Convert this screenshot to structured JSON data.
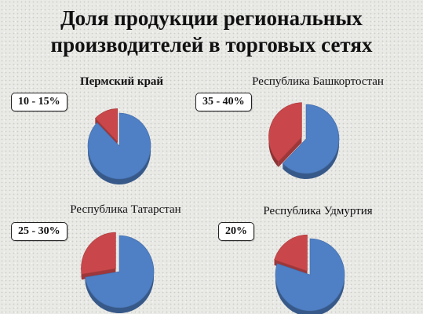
{
  "title_line1": "Доля продукции региональных",
  "title_line2": "производителей в торговых сетях",
  "colors": {
    "regional": "#c9474a",
    "other": "#4f7fc4"
  },
  "chart_data": [
    {
      "type": "pie",
      "title": "Пермский край",
      "range_label": "10 - 15%",
      "values": [
        12.5,
        87.5
      ],
      "colors": [
        "#c9474a",
        "#4f7fc4"
      ],
      "exploded": [
        true,
        false
      ]
    },
    {
      "type": "pie",
      "title": "Республика Башкортостан",
      "range_label": "35 - 40%",
      "values": [
        37.5,
        62.5
      ],
      "colors": [
        "#c9474a",
        "#4f7fc4"
      ],
      "exploded": [
        true,
        false
      ]
    },
    {
      "type": "pie",
      "title": "Республика Татарстан",
      "range_label": "25 - 30%",
      "values": [
        27.5,
        72.5
      ],
      "colors": [
        "#c9474a",
        "#4f7fc4"
      ],
      "exploded": [
        true,
        false
      ]
    },
    {
      "type": "pie",
      "title": "Республика Удмуртия",
      "range_label": "20%",
      "values": [
        20,
        80
      ],
      "colors": [
        "#c9474a",
        "#4f7fc4"
      ],
      "exploded": [
        true,
        false
      ]
    }
  ]
}
